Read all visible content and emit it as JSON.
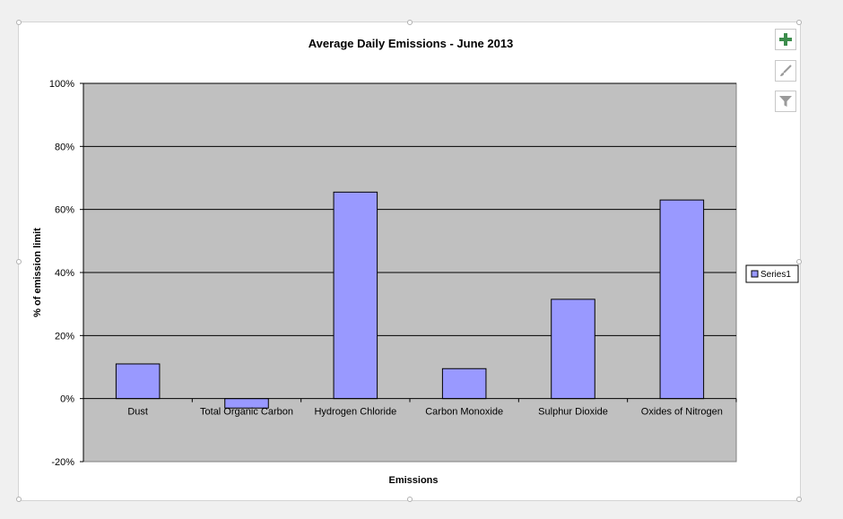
{
  "chart_data": {
    "type": "bar",
    "title": "Average Daily Emissions - June 2013",
    "xlabel": "Emissions",
    "ylabel": "% of emission limit",
    "categories": [
      "Dust",
      "Total Organic Carbon",
      "Hydrogen Chloride",
      "Carbon Monoxide",
      "Sulphur Dioxide",
      "Oxides of Nitrogen"
    ],
    "series": [
      {
        "name": "Series1",
        "values": [
          11,
          -3,
          65.5,
          9.5,
          31.5,
          63
        ]
      }
    ],
    "ylim": [
      -20,
      100
    ],
    "yticks": [
      -20,
      0,
      20,
      40,
      60,
      80,
      100
    ],
    "ytick_labels": [
      "-20%",
      "0%",
      "20%",
      "40%",
      "60%",
      "80%",
      "100%"
    ],
    "grid": true,
    "legend_position": "right",
    "colors": {
      "bar": "#9999ff",
      "plot_background": "#c0c0c0",
      "grid": "#000000"
    }
  },
  "toolbar": {
    "buttons": [
      {
        "name": "chart-elements-button",
        "icon": "plus-icon"
      },
      {
        "name": "chart-styles-button",
        "icon": "paintbrush-icon"
      },
      {
        "name": "chart-filters-button",
        "icon": "filter-icon"
      }
    ]
  }
}
